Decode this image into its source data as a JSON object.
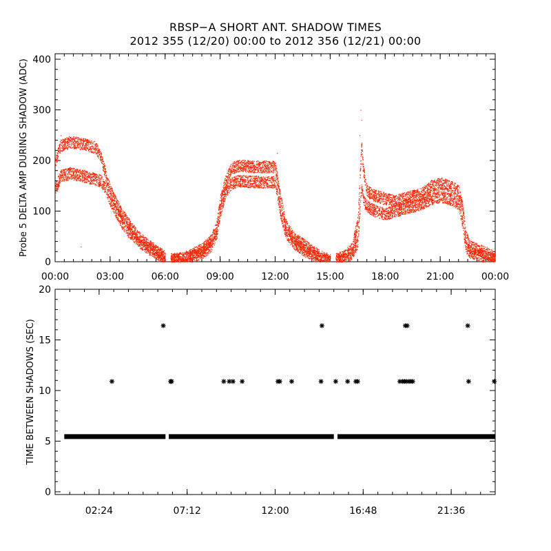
{
  "titles": {
    "line1": "RBSP−A SHORT ANT. SHADOW TIMES",
    "line2": "2012 355 (12/20) 00:00 to 2012 356 (12/21) 00:00"
  },
  "colors": {
    "top_series": "#ff2200",
    "bottom_series": "#000000",
    "axes": "#000000"
  },
  "chart_data": [
    {
      "type": "scatter",
      "title": "",
      "xlabel": "",
      "ylabel": "Probe 5 DELTA AMP DURING SHADOW (ADC)",
      "xlim": [
        0,
        24
      ],
      "ylim": [
        0,
        400
      ],
      "x_unit": "hours",
      "xticks": [
        "00:00",
        "03:00",
        "06:00",
        "09:00",
        "12:00",
        "15:00",
        "18:00",
        "21:00",
        "00:00"
      ],
      "yticks": [
        "0",
        "100",
        "200",
        "300",
        "400"
      ],
      "grid": false,
      "series": [
        {
          "bands": [
            {
              "x": [
                0.0,
                0.3,
                0.8,
                1.5,
                2.2,
                2.5,
                2.8,
                3.0,
                3.3,
                3.6,
                4.0,
                4.5,
                5.0,
                5.5,
                6.0
              ],
              "y": [
                200,
                230,
                237,
                233,
                226,
                205,
                165,
                140,
                118,
                96,
                75,
                50,
                35,
                22,
                10
              ]
            },
            {
              "x": [
                0.0,
                0.3,
                0.8,
                1.5,
                2.2,
                2.5,
                2.8,
                3.0,
                3.3,
                3.6,
                4.0,
                4.5,
                5.0,
                5.5,
                6.0
              ],
              "y": [
                145,
                170,
                175,
                170,
                163,
                160,
                140,
                120,
                100,
                80,
                60,
                42,
                28,
                18,
                5
              ]
            },
            {
              "x": [
                6.3,
                7.0,
                8.0,
                8.5,
                8.8,
                9.0,
                9.3,
                9.6,
                10.0,
                11.0,
                12.0,
                12.3,
                12.6,
                13.0,
                13.5,
                14.0,
                14.5,
                15.0
              ],
              "y": [
                5,
                8,
                25,
                42,
                70,
                120,
                160,
                185,
                190,
                188,
                188,
                120,
                70,
                48,
                35,
                22,
                10,
                3
              ]
            },
            {
              "x": [
                6.3,
                7.0,
                8.0,
                8.5,
                8.8,
                9.0,
                9.3,
                9.6,
                10.0,
                11.0,
                12.0,
                12.3,
                12.6,
                13.0,
                13.5,
                14.0,
                14.5,
                15.0
              ],
              "y": [
                2,
                5,
                18,
                32,
                55,
                100,
                140,
                155,
                160,
                158,
                158,
                95,
                55,
                38,
                25,
                14,
                5,
                0
              ]
            },
            {
              "x": [
                15.3,
                15.8,
                16.2,
                16.5,
                16.7,
                16.8,
                17.0,
                17.2,
                17.5,
                18.0,
                18.5,
                19.0,
                20.0,
                20.5,
                21.0,
                21.5,
                22.0,
                22.2,
                22.4,
                22.6,
                23.0,
                23.5,
                24.0
              ],
              "y": [
                5,
                12,
                28,
                80,
                230,
                180,
                140,
                135,
                130,
                125,
                120,
                125,
                135,
                150,
                155,
                150,
                140,
                110,
                50,
                30,
                25,
                18,
                8
              ]
            },
            {
              "x": [
                15.3,
                15.8,
                16.2,
                16.5,
                16.7,
                16.8,
                17.0,
                17.2,
                17.5,
                18.0,
                18.5,
                19.0,
                20.0,
                20.5,
                21.0,
                21.5,
                22.0,
                22.2,
                22.4,
                22.6,
                23.0,
                23.5,
                24.0
              ],
              "y": [
                2,
                6,
                18,
                40,
                150,
                120,
                110,
                105,
                100,
                95,
                100,
                105,
                115,
                125,
                130,
                125,
                115,
                80,
                30,
                20,
                15,
                10,
                3
              ]
            }
          ]
        }
      ]
    },
    {
      "type": "scatter",
      "title": "",
      "xlabel": "",
      "ylabel": "TIME BETWEEN SHADOWS (SEC)",
      "xlim": [
        0,
        24
      ],
      "ylim": [
        0,
        20
      ],
      "x_unit": "hours",
      "xticks": [
        {
          "x": 2.4,
          "label": "02:24"
        },
        {
          "x": 7.2,
          "label": "07:12"
        },
        {
          "x": 12.0,
          "label": "12:00"
        },
        {
          "x": 16.8,
          "label": "16:48"
        },
        {
          "x": 21.6,
          "label": "21:36"
        }
      ],
      "yticks": [
        "0",
        "5",
        "10",
        "15",
        "20"
      ],
      "grid": false,
      "baseline": {
        "y": 5.45,
        "segments": [
          [
            0.5,
            6.02
          ],
          [
            6.2,
            15.2
          ],
          [
            15.4,
            24.0
          ]
        ]
      },
      "points": [
        {
          "x": 3.1,
          "y": 10.9
        },
        {
          "x": 5.9,
          "y": 16.4
        },
        {
          "x": 6.3,
          "y": 10.9
        },
        {
          "x": 6.35,
          "y": 10.9
        },
        {
          "x": 9.2,
          "y": 10.9
        },
        {
          "x": 9.5,
          "y": 10.9
        },
        {
          "x": 9.7,
          "y": 10.9
        },
        {
          "x": 10.2,
          "y": 10.9
        },
        {
          "x": 12.15,
          "y": 10.9
        },
        {
          "x": 12.25,
          "y": 10.9
        },
        {
          "x": 12.9,
          "y": 10.9
        },
        {
          "x": 14.5,
          "y": 10.9
        },
        {
          "x": 14.55,
          "y": 16.4
        },
        {
          "x": 15.3,
          "y": 10.9
        },
        {
          "x": 15.95,
          "y": 10.9
        },
        {
          "x": 16.4,
          "y": 10.9
        },
        {
          "x": 16.5,
          "y": 10.9
        },
        {
          "x": 18.8,
          "y": 10.9
        },
        {
          "x": 18.95,
          "y": 10.9
        },
        {
          "x": 19.05,
          "y": 10.9
        },
        {
          "x": 19.1,
          "y": 16.4
        },
        {
          "x": 19.15,
          "y": 10.9
        },
        {
          "x": 19.2,
          "y": 16.4
        },
        {
          "x": 19.3,
          "y": 10.9
        },
        {
          "x": 19.4,
          "y": 10.9
        },
        {
          "x": 19.5,
          "y": 10.9
        },
        {
          "x": 22.5,
          "y": 16.4
        },
        {
          "x": 22.55,
          "y": 10.9
        },
        {
          "x": 23.95,
          "y": 10.9
        }
      ]
    }
  ]
}
